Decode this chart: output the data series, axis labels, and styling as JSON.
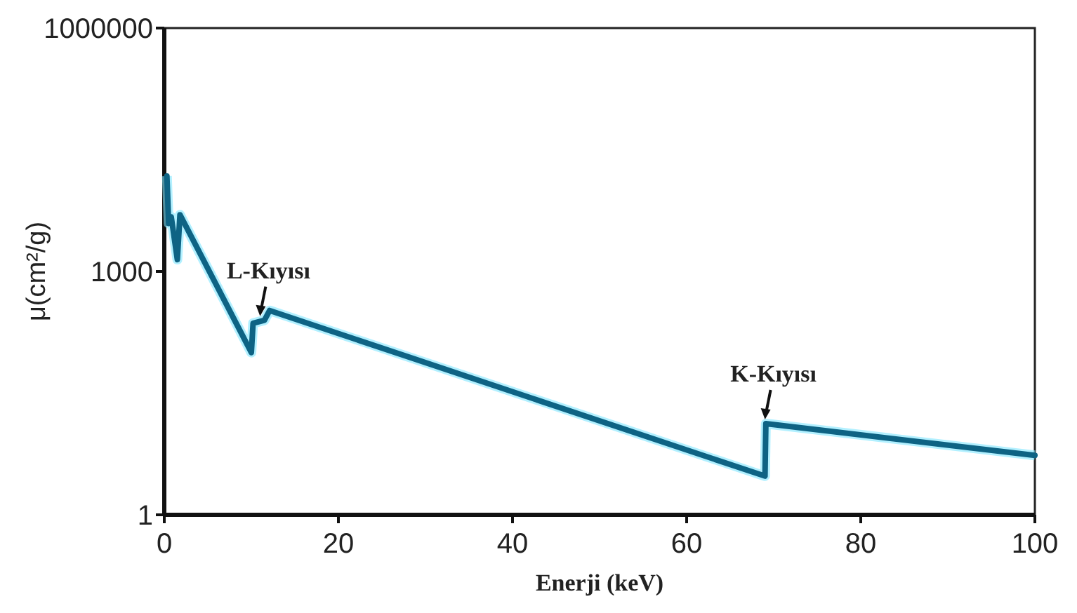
{
  "chart_data": {
    "type": "line",
    "xlabel": "Enerji (keV)",
    "ylabel": "μ(cm²/g)",
    "x": [
      0.3,
      0.5,
      0.8,
      1.5,
      1.8,
      10,
      10.2,
      11.5,
      12.1,
      69,
      69.1,
      100
    ],
    "values": [
      15000,
      3900,
      4700,
      1400,
      5000,
      100,
      230,
      250,
      330,
      3,
      13.3,
      5.4
    ],
    "color": "#0e6384",
    "xlim": [
      0,
      100
    ],
    "ylim": [
      1,
      1000000
    ],
    "xticks": [
      0,
      20,
      40,
      60,
      80,
      100
    ],
    "yticks": [
      1,
      1000,
      1000000
    ],
    "log": true,
    "grid": false,
    "marker": "none",
    "line_style": "solid",
    "annotations": [
      {
        "text": "L-Kıyısı",
        "x": 11,
        "y": 250
      },
      {
        "text": "K-Kıyısı",
        "x": 69,
        "y": 13.3
      }
    ]
  }
}
